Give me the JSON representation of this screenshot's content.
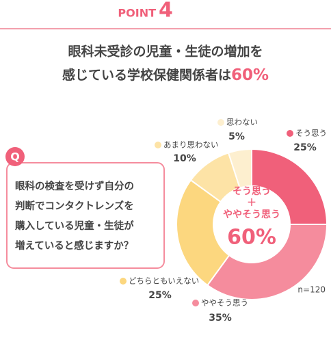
{
  "header": {
    "label": "POINT",
    "number": "4"
  },
  "title": {
    "lines": [
      "眼科未受診の児童・生徒の増加を",
      "感じている学校保健関係者は"
    ],
    "highlight": "60%"
  },
  "question": {
    "badge": "Q",
    "lines": [
      "眼科の検査を受けず自分の",
      "判断でコンタクトレンズを",
      "購入している児童・生徒が",
      "増えていると感じますか？"
    ]
  },
  "chart_data": {
    "type": "donut",
    "categories": [
      "そう思う",
      "ややそう思う",
      "どちらともいえない",
      "あまり思わない",
      "思わない"
    ],
    "values": [
      25,
      35,
      25,
      10,
      5
    ],
    "value_labels": [
      "25%",
      "35%",
      "25%",
      "10%",
      "5%"
    ],
    "colors": [
      "#f0607a",
      "#f58c9d",
      "#fcd77f",
      "#fde3a6",
      "#fdefcf"
    ],
    "center_label": {
      "lines": [
        "そう思う",
        "＋",
        "ややそう思う"
      ],
      "value": "60%"
    },
    "note": "n=120"
  }
}
